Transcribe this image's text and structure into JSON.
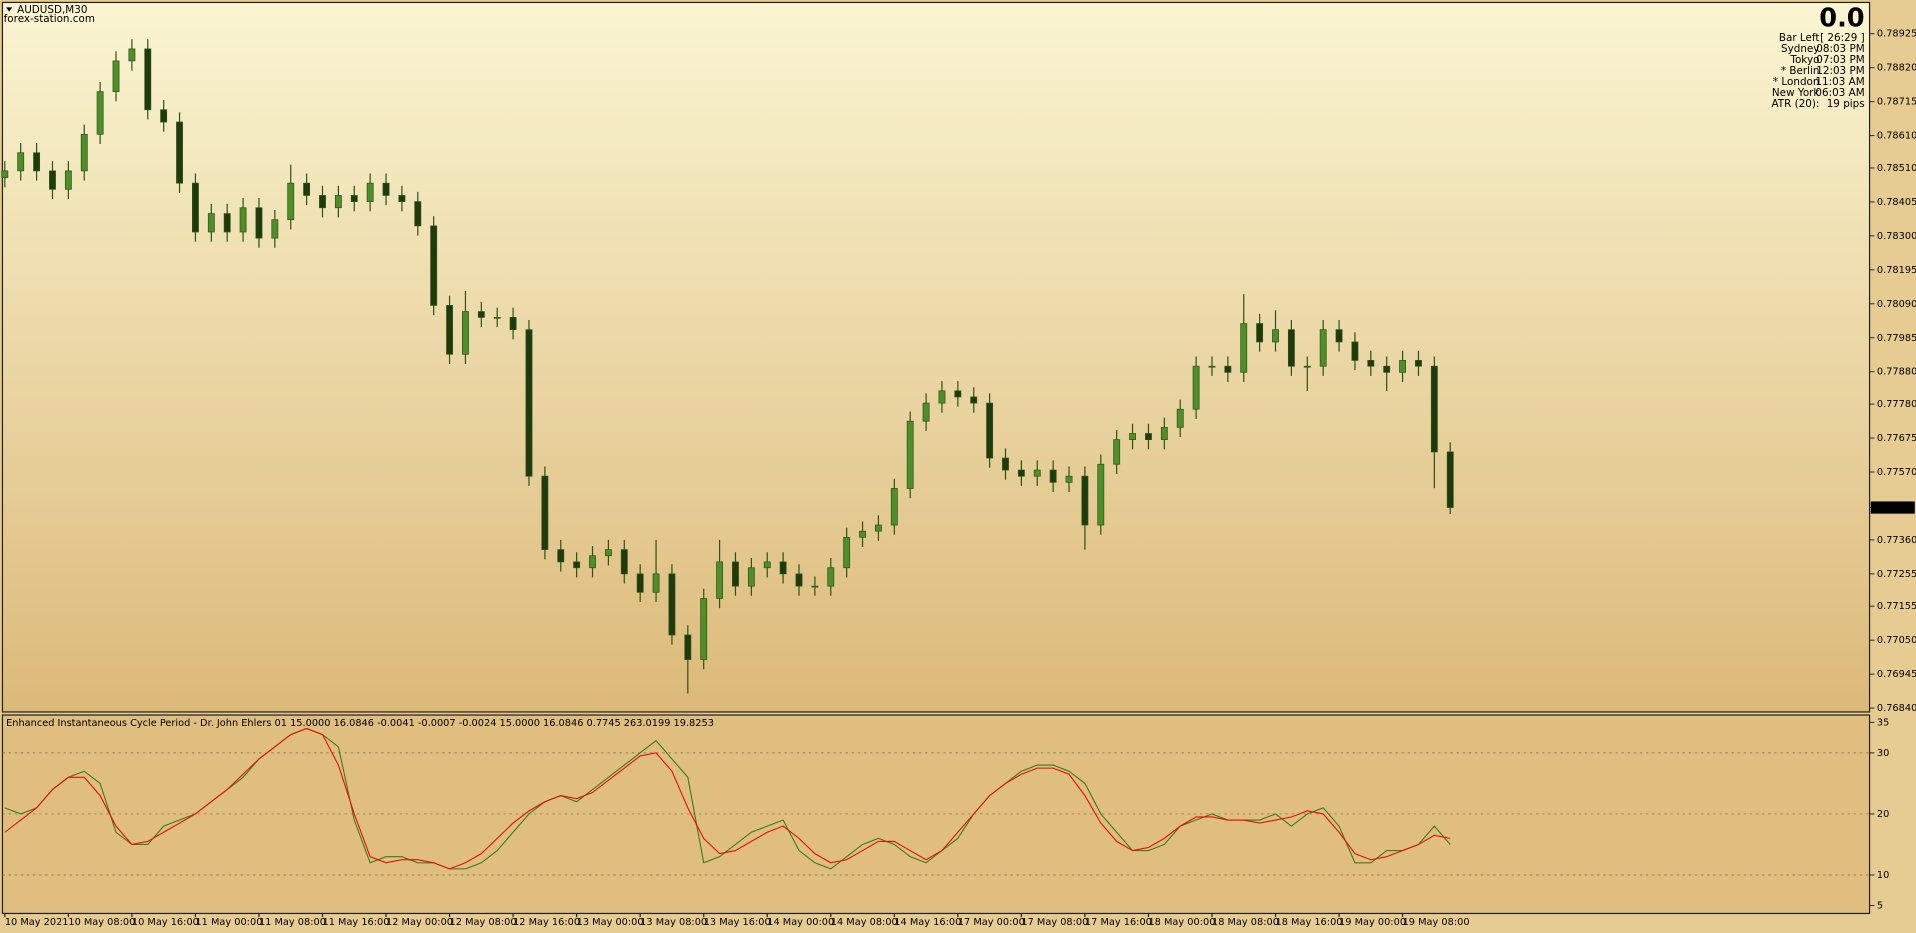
{
  "header": {
    "symbol": "AUDUSD,M30",
    "source": "forex-station.com"
  },
  "info": {
    "big": "0.0",
    "color": "#9a8a6a",
    "rows": [
      {
        "label": "Bar Left",
        "value": "[ 26:29 ]",
        "color": "#555555"
      },
      {
        "label": "Sydney",
        "value": "08:03 PM",
        "color": "#555555"
      },
      {
        "label": "Tokyo",
        "value": "07:03 PM",
        "color": "#555555"
      },
      {
        "label": "* Berlin",
        "value": "12:03 PM",
        "color": "#e00000"
      },
      {
        "label": "* London",
        "value": "11:03 AM",
        "color": "#e00000"
      },
      {
        "label": "New York",
        "value": "06:03 AM",
        "color": "#555555"
      },
      {
        "label": "ATR (20):",
        "value": "19 pips",
        "color": "#555555"
      }
    ]
  },
  "chart_data": [
    {
      "type": "candlestick",
      "up_color": "#4f8f2a",
      "down_color": "#1f3a0c",
      "wick_color": "#2f5416",
      "xlim": [
        -0.15,
        117.4
      ],
      "ylim": [
        0.76828,
        0.79018
      ],
      "yticks": [
        {
          "value": 0.78925,
          "label": "0.78925"
        },
        {
          "value": 0.7882,
          "label": "0.78820"
        },
        {
          "value": 0.78715,
          "label": "0.78715"
        },
        {
          "value": 0.7861,
          "label": "0.78610"
        },
        {
          "value": 0.7851,
          "label": "0.78510"
        },
        {
          "value": 0.78405,
          "label": "0.78405"
        },
        {
          "value": 0.783,
          "label": "0.78300"
        },
        {
          "value": 0.78195,
          "label": "0.78195"
        },
        {
          "value": 0.7809,
          "label": "0.78090"
        },
        {
          "value": 0.77985,
          "label": "0.77985"
        },
        {
          "value": 0.7788,
          "label": "0.77880"
        },
        {
          "value": 0.7778,
          "label": "0.77780"
        },
        {
          "value": 0.77675,
          "label": "0.77675"
        },
        {
          "value": 0.7757,
          "label": "0.77570"
        },
        {
          "value": 0.7736,
          "label": "0.77360"
        },
        {
          "value": 0.77255,
          "label": "0.77255"
        },
        {
          "value": 0.77155,
          "label": "0.77155"
        },
        {
          "value": 0.7705,
          "label": "0.77050"
        },
        {
          "value": 0.76945,
          "label": "0.76945"
        },
        {
          "value": 0.7684,
          "label": "0.76840"
        }
      ],
      "current_price": {
        "value": 0.7746,
        "label": "0.77460"
      },
      "open": [
        0.7848,
        0.78501,
        0.78557,
        0.78501,
        0.78444,
        0.78501,
        0.78614,
        0.78746,
        0.78841,
        0.78878,
        0.7869,
        0.78652,
        0.78463,
        0.78312,
        0.78369,
        0.78312,
        0.78387,
        0.78293,
        0.7835,
        0.78463,
        0.78425,
        0.78387,
        0.78425,
        0.78406,
        0.78463,
        0.78425,
        0.78406,
        0.78331,
        0.78085,
        0.77934,
        0.78066,
        0.78048,
        0.78048,
        0.7801,
        0.77557,
        0.7733,
        0.77292,
        0.77274,
        0.77311,
        0.7733,
        0.77255,
        0.77198,
        0.77255,
        0.77066,
        0.7699,
        0.77179,
        0.77292,
        0.77217,
        0.77274,
        0.77292,
        0.77255,
        0.77217,
        0.77217,
        0.77274,
        0.77368,
        0.77387,
        0.77406,
        0.77519,
        0.77727,
        0.77783,
        0.77821,
        0.77802,
        0.77783,
        0.77613,
        0.77576,
        0.77557,
        0.77576,
        0.77538,
        0.77557,
        0.77406,
        0.77594,
        0.7767,
        0.77689,
        0.7767,
        0.77708,
        0.77764,
        0.77897,
        0.77897,
        0.77878,
        0.78029,
        0.77972,
        0.7801,
        0.77897,
        0.77897,
        0.7801,
        0.77972,
        0.77915,
        0.77897,
        0.77878,
        0.77915,
        0.77897,
        0.77632
      ],
      "high": [
        0.78531,
        0.78587,
        0.78587,
        0.78531,
        0.78531,
        0.78644,
        0.78776,
        0.78871,
        0.78908,
        0.78908,
        0.7872,
        0.78682,
        0.78493,
        0.78399,
        0.78399,
        0.78417,
        0.78417,
        0.7838,
        0.7852,
        0.78493,
        0.78455,
        0.78455,
        0.78455,
        0.78493,
        0.78493,
        0.78455,
        0.78436,
        0.78361,
        0.78115,
        0.7813,
        0.78096,
        0.78078,
        0.78078,
        0.7804,
        0.77587,
        0.7736,
        0.77322,
        0.77341,
        0.7736,
        0.7736,
        0.77285,
        0.7736,
        0.77285,
        0.77096,
        0.77209,
        0.7736,
        0.77322,
        0.77304,
        0.77322,
        0.77322,
        0.77285,
        0.77247,
        0.77304,
        0.77398,
        0.77417,
        0.77436,
        0.77549,
        0.77757,
        0.77813,
        0.77851,
        0.77851,
        0.77832,
        0.77813,
        0.77643,
        0.77606,
        0.77606,
        0.77606,
        0.77587,
        0.77587,
        0.77624,
        0.777,
        0.77719,
        0.77719,
        0.77738,
        0.77794,
        0.77927,
        0.77927,
        0.77927,
        0.7812,
        0.78059,
        0.7807,
        0.7804,
        0.77927,
        0.7804,
        0.7804,
        0.78002,
        0.77945,
        0.77927,
        0.77945,
        0.77945,
        0.77927,
        0.77662
      ],
      "low": [
        0.7845,
        0.78471,
        0.78471,
        0.78414,
        0.78414,
        0.78471,
        0.78584,
        0.78716,
        0.78811,
        0.7866,
        0.78622,
        0.78433,
        0.78282,
        0.78282,
        0.78282,
        0.78282,
        0.78263,
        0.78263,
        0.7832,
        0.78395,
        0.78357,
        0.78357,
        0.78376,
        0.78376,
        0.78395,
        0.78376,
        0.78301,
        0.78055,
        0.77904,
        0.77904,
        0.78018,
        0.78018,
        0.7798,
        0.77527,
        0.773,
        0.77262,
        0.77244,
        0.77244,
        0.77281,
        0.77225,
        0.77168,
        0.77168,
        0.77036,
        0.76885,
        0.7696,
        0.77149,
        0.77187,
        0.77187,
        0.77244,
        0.77225,
        0.77187,
        0.77187,
        0.77187,
        0.77244,
        0.77338,
        0.77357,
        0.77376,
        0.77489,
        0.77697,
        0.77753,
        0.77772,
        0.77753,
        0.77583,
        0.77546,
        0.77527,
        0.77527,
        0.77508,
        0.77508,
        0.7733,
        0.77376,
        0.77564,
        0.7764,
        0.7764,
        0.7764,
        0.77678,
        0.77734,
        0.77867,
        0.77848,
        0.77848,
        0.77942,
        0.77942,
        0.77867,
        0.7782,
        0.77867,
        0.77942,
        0.77885,
        0.77867,
        0.7782,
        0.77848,
        0.77867,
        0.7752,
        0.7744
      ],
      "close": [
        0.78501,
        0.78557,
        0.78501,
        0.78444,
        0.78501,
        0.78614,
        0.78746,
        0.78841,
        0.78878,
        0.7869,
        0.78652,
        0.78463,
        0.78312,
        0.78369,
        0.78312,
        0.78387,
        0.78293,
        0.7835,
        0.78463,
        0.78425,
        0.78387,
        0.78425,
        0.78406,
        0.78463,
        0.78425,
        0.78406,
        0.78331,
        0.78085,
        0.77934,
        0.78066,
        0.78048,
        0.78048,
        0.7801,
        0.77557,
        0.7733,
        0.77292,
        0.77274,
        0.77311,
        0.7733,
        0.77255,
        0.77198,
        0.77255,
        0.77066,
        0.7699,
        0.77179,
        0.77292,
        0.77217,
        0.77274,
        0.77292,
        0.77255,
        0.77217,
        0.77217,
        0.77274,
        0.77368,
        0.77387,
        0.77406,
        0.77519,
        0.77727,
        0.77783,
        0.77821,
        0.77802,
        0.77783,
        0.77613,
        0.77576,
        0.77557,
        0.77576,
        0.77538,
        0.77557,
        0.77406,
        0.77594,
        0.7767,
        0.77689,
        0.7767,
        0.77708,
        0.77764,
        0.77897,
        0.77897,
        0.77878,
        0.78029,
        0.77972,
        0.7801,
        0.77897,
        0.77897,
        0.7801,
        0.77972,
        0.77915,
        0.77897,
        0.77878,
        0.77915,
        0.77897,
        0.77632,
        0.7746
      ]
    },
    {
      "type": "line",
      "title": "Enhanced Instantaneous Cycle Period - Dr. John Ehlers 01 15.0000 16.0846 -0.0041 -0.0007 -0.0024 15.0000 16.0846 0.7745 263.0199 19.8253",
      "xlim": [
        -0.15,
        117.4
      ],
      "ylim": [
        3.7,
        36.1
      ],
      "yticks": [
        35,
        30,
        20,
        10,
        5
      ],
      "levels": [
        30,
        20,
        10
      ],
      "xticks": [
        {
          "value": 0,
          "label": "10 May 2021"
        },
        {
          "value": 4,
          "label": "10 May 08:00"
        },
        {
          "value": 8,
          "label": "10 May 16:00"
        },
        {
          "value": 12,
          "label": "11 May 00:00"
        },
        {
          "value": 16,
          "label": "11 May 08:00"
        },
        {
          "value": 20,
          "label": "11 May 16:00"
        },
        {
          "value": 24,
          "label": "12 May 00:00"
        },
        {
          "value": 28,
          "label": "12 May 08:00"
        },
        {
          "value": 32,
          "label": "12 May 16:00"
        },
        {
          "value": 36,
          "label": "13 May 00:00"
        },
        {
          "value": 40,
          "label": "13 May 08:00"
        },
        {
          "value": 44,
          "label": "13 May 16:00"
        },
        {
          "value": 48,
          "label": "14 May 00:00"
        },
        {
          "value": 52,
          "label": "14 May 08:00"
        },
        {
          "value": 56,
          "label": "14 May 16:00"
        },
        {
          "value": 60,
          "label": "17 May 00:00"
        },
        {
          "value": 64,
          "label": "17 May 08:00"
        },
        {
          "value": 68,
          "label": "17 May 16:00"
        },
        {
          "value": 72,
          "label": "18 May 00:00"
        },
        {
          "value": 76,
          "label": "18 May 08:00"
        },
        {
          "value": 80,
          "label": "18 May 16:00"
        },
        {
          "value": 84,
          "label": "19 May 00:00"
        },
        {
          "value": 88,
          "label": "19 May 08:00"
        }
      ],
      "series": [
        {
          "color": "#3d7a1e",
          "values": [
            21,
            20,
            21,
            24,
            26,
            27,
            25,
            17,
            15,
            15,
            18,
            19,
            20,
            22,
            24,
            26,
            29,
            31,
            33,
            34,
            33,
            31,
            19,
            12,
            13,
            13,
            12,
            12,
            11,
            11,
            12,
            14,
            17,
            20,
            22,
            23,
            22,
            24,
            26,
            28,
            30,
            32,
            29,
            26,
            12,
            13,
            15,
            17,
            18,
            19,
            14,
            12,
            11,
            13,
            15,
            16,
            15,
            13,
            12,
            14,
            16,
            20,
            23,
            25,
            27,
            28,
            28,
            27,
            25,
            20,
            17,
            14,
            14,
            15,
            18,
            19,
            20,
            19,
            19,
            19,
            20,
            18,
            20,
            21,
            18,
            12,
            12,
            14,
            14,
            15,
            18,
            15
          ]
        },
        {
          "color": "#e01010",
          "values": [
            17,
            19,
            21,
            24,
            26,
            26,
            23,
            18,
            15,
            15.5,
            17,
            18.5,
            20,
            22,
            24,
            26.5,
            29,
            31,
            33,
            34,
            33,
            28,
            20,
            13,
            12,
            12.5,
            12.5,
            12,
            11,
            12,
            13.5,
            16,
            18.5,
            20.5,
            22,
            23,
            22.5,
            23.5,
            25.5,
            27.5,
            29.5,
            30,
            27,
            21,
            16,
            13.5,
            14,
            15.5,
            17,
            18,
            16,
            13.5,
            12,
            12.5,
            14,
            15.5,
            15.5,
            14,
            12.5,
            14,
            17,
            20,
            23,
            25,
            26.5,
            27.5,
            27.5,
            26.5,
            23,
            18.5,
            15.5,
            14,
            14.5,
            16,
            18,
            19.5,
            19.5,
            19,
            19,
            18.5,
            19,
            19.5,
            20.5,
            20,
            17,
            13.5,
            12.5,
            13,
            14,
            15,
            16.5,
            16
          ]
        }
      ]
    }
  ]
}
